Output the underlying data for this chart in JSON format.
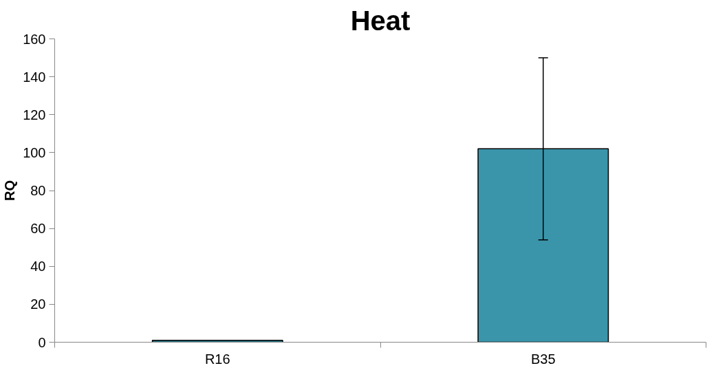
{
  "chart_data": {
    "type": "bar",
    "title": "Heat",
    "ylabel": "RQ",
    "categories": [
      "R16",
      "B35"
    ],
    "values": [
      1,
      102
    ],
    "errors": [
      null,
      [
        54,
        150
      ]
    ],
    "color": "#3a95aa",
    "ylim": [
      0,
      160
    ],
    "yticks": [
      0,
      20,
      40,
      60,
      80,
      100,
      120,
      140,
      160
    ],
    "grid": false
  }
}
